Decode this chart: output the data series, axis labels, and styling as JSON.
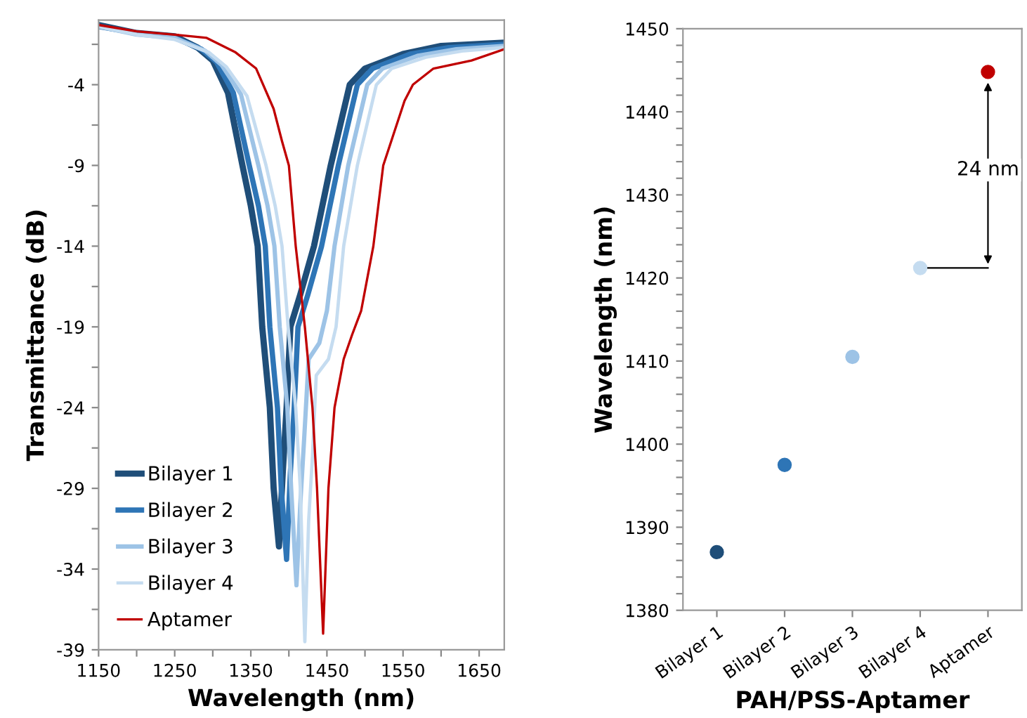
{
  "chart_data": [
    {
      "type": "line",
      "xlabel": "Wavelength (nm)",
      "ylabel": "Transmittance (dB)",
      "xlim": [
        1150,
        1683
      ],
      "ylim": [
        -39,
        0
      ],
      "xticks": [
        1150,
        {
          "value": 1200,
          "label": null
        },
        1250,
        {
          "value": 1300,
          "label": null
        },
        1350,
        {
          "value": 1400,
          "label": null
        },
        1450,
        {
          "value": 1500,
          "label": null
        },
        1550,
        {
          "value": 1600,
          "label": null
        },
        1650
      ],
      "yticks": [
        -39,
        {
          "value": -36.5,
          "label": null
        },
        -34,
        {
          "value": -31.5,
          "label": null
        },
        -29,
        {
          "value": -26.5,
          "label": null
        },
        -24,
        {
          "value": -21.5,
          "label": null
        },
        -19,
        {
          "value": -16.5,
          "label": null
        },
        -14,
        {
          "value": -11.5,
          "label": null
        },
        -9,
        {
          "value": -6.5,
          "label": null
        },
        -4,
        {
          "value": -1.5,
          "label": null
        }
      ],
      "grid": false,
      "legend": "bottom left",
      "line_style": "solid",
      "marker": "none",
      "series": [
        {
          "name": "Bilayer 1",
          "color": "#1f4e79",
          "x": [
            1150,
            1200,
            1250,
            1280,
            1300,
            1320,
            1339,
            1350,
            1359,
            1365,
            1375,
            1380,
            1387,
            1392,
            1397,
            1402,
            1415,
            1433,
            1455,
            1480,
            1500,
            1550,
            1600,
            1683
          ],
          "values": [
            -0.3,
            -0.8,
            -1.0,
            -1.7,
            -2.5,
            -4.5,
            -9,
            -11.5,
            -14,
            -19,
            -24,
            -29,
            -32.6,
            -28,
            -24,
            -19,
            -17,
            -14,
            -9,
            -4,
            -3,
            -2.1,
            -1.6,
            -1.4
          ]
        },
        {
          "name": "Bilayer 2",
          "color": "#2e75b6",
          "x": [
            1150,
            1200,
            1250,
            1285,
            1305,
            1327,
            1348,
            1360,
            1369,
            1375,
            1385,
            1390,
            1397,
            1402,
            1407,
            1412,
            1425,
            1443,
            1465,
            1490,
            1510,
            1560,
            1610,
            1683
          ],
          "values": [
            -0.4,
            -0.8,
            -1.1,
            -1.8,
            -2.6,
            -4.5,
            -9,
            -11.5,
            -14,
            -19,
            -24,
            -29,
            -33.4,
            -28,
            -24,
            -19,
            -17,
            -14,
            -9,
            -4,
            -3,
            -2.1,
            -1.7,
            -1.5
          ]
        },
        {
          "name": "Bilayer 3",
          "color": "#9dc3e6",
          "x": [
            1150,
            1200,
            1250,
            1290,
            1312,
            1337,
            1360,
            1372,
            1381,
            1388,
            1398,
            1403,
            1410,
            1415,
            1420,
            1426,
            1440,
            1450,
            1460,
            1478,
            1503,
            1523,
            1570,
            1620,
            1683
          ],
          "values": [
            -0.4,
            -0.9,
            -1.1,
            -1.9,
            -2.8,
            -4.6,
            -9,
            -11.5,
            -14,
            -19,
            -24,
            -29,
            -35,
            -30,
            -26,
            -21,
            -20,
            -18,
            -14,
            -9,
            -4,
            -3,
            -2.2,
            -1.8,
            -1.6
          ]
        },
        {
          "name": "Bilayer 4",
          "color": "#c5dcf0",
          "x": [
            1150,
            1200,
            1250,
            1295,
            1318,
            1345,
            1370,
            1382,
            1391,
            1399,
            1409,
            1415,
            1421,
            1426,
            1431,
            1436,
            1452,
            1462,
            1472,
            1490,
            1515,
            1535,
            1580,
            1630,
            1683
          ],
          "values": [
            -0.4,
            -0.9,
            -1.2,
            -2.0,
            -2.9,
            -4.7,
            -9,
            -11.5,
            -14,
            -19,
            -24,
            -29,
            -38.5,
            -31,
            -27,
            -22,
            -21,
            -19,
            -14,
            -9,
            -4,
            -3,
            -2.3,
            -1.9,
            -1.7
          ]
        },
        {
          "name": "Aptamer",
          "color": "#c00000",
          "x": [
            1150,
            1200,
            1250,
            1292,
            1330,
            1357,
            1380,
            1391,
            1400,
            1409,
            1421,
            1431,
            1437,
            1445,
            1452,
            1460,
            1472,
            1483,
            1495,
            1511,
            1524,
            1552,
            1563,
            1590,
            1640,
            1683
          ],
          "values": [
            -0.3,
            -0.7,
            -0.9,
            -1.1,
            -2.0,
            -3.0,
            -5.5,
            -7.5,
            -9,
            -14,
            -19,
            -24,
            -29,
            -38,
            -29,
            -24,
            -21,
            -19.5,
            -18,
            -14,
            -9,
            -5,
            -4,
            -3,
            -2.5,
            -1.8
          ]
        }
      ]
    },
    {
      "type": "scatter",
      "xlabel": "PAH/PSS-Aptamer",
      "ylabel": "Wavelength (nm)",
      "ylim": [
        1380,
        1450
      ],
      "yticks": [
        1380,
        {
          "value": 1382,
          "label": null
        },
        {
          "value": 1384,
          "label": null
        },
        {
          "value": 1386,
          "label": null
        },
        {
          "value": 1388,
          "label": null
        },
        1390,
        {
          "value": 1392,
          "label": null
        },
        {
          "value": 1394,
          "label": null
        },
        {
          "value": 1396,
          "label": null
        },
        {
          "value": 1398,
          "label": null
        },
        1400,
        {
          "value": 1402,
          "label": null
        },
        {
          "value": 1404,
          "label": null
        },
        {
          "value": 1406,
          "label": null
        },
        {
          "value": 1408,
          "label": null
        },
        1410,
        {
          "value": 1412,
          "label": null
        },
        {
          "value": 1414,
          "label": null
        },
        {
          "value": 1416,
          "label": null
        },
        {
          "value": 1418,
          "label": null
        },
        1420,
        {
          "value": 1422,
          "label": null
        },
        {
          "value": 1424,
          "label": null
        },
        {
          "value": 1426,
          "label": null
        },
        {
          "value": 1428,
          "label": null
        },
        1430,
        {
          "value": 1432,
          "label": null
        },
        {
          "value": 1434,
          "label": null
        },
        {
          "value": 1436,
          "label": null
        },
        {
          "value": 1438,
          "label": null
        },
        1440,
        {
          "value": 1442,
          "label": null
        },
        {
          "value": 1444,
          "label": null
        },
        {
          "value": 1446,
          "label": null
        },
        {
          "value": 1448,
          "label": null
        },
        1450
      ],
      "grid": false,
      "marker": "circle",
      "categories": [
        "Bilayer 1",
        "Bilayer 2",
        "Bilayer 3",
        "Bilayer 4",
        "Aptamer"
      ],
      "values": [
        1387,
        1397.5,
        1410.5,
        1421.2,
        1444.8
      ],
      "colors": [
        "#1f4e79",
        "#2e75b6",
        "#9dc3e6",
        "#c5dcf0",
        "#c00000"
      ],
      "annotations": [
        "24 nm"
      ]
    }
  ]
}
